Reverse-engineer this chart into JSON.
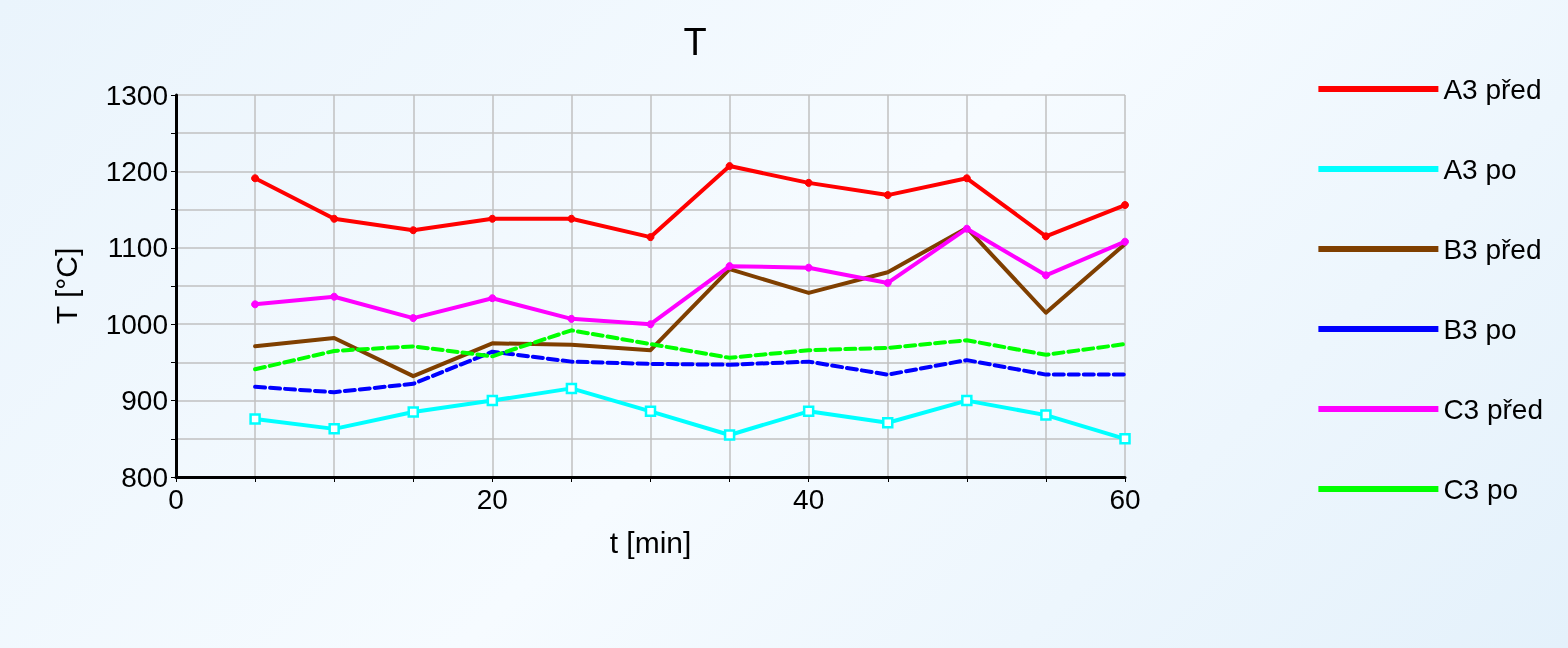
{
  "chart_data": {
    "type": "line",
    "title": "T",
    "xlabel": "t [min]",
    "ylabel": "T [°C]",
    "x": [
      5,
      10,
      15,
      20,
      25,
      30,
      35,
      40,
      45,
      50,
      55,
      60
    ],
    "xlim": [
      0,
      60
    ],
    "xticks": [
      0,
      {
        "value": 5,
        "label": null
      },
      {
        "value": 10,
        "label": null
      },
      {
        "value": 15,
        "label": null
      },
      20,
      {
        "value": 25,
        "label": null
      },
      {
        "value": 30,
        "label": null
      },
      {
        "value": 35,
        "label": null
      },
      40,
      {
        "value": 45,
        "label": null
      },
      {
        "value": 50,
        "label": null
      },
      {
        "value": 55,
        "label": null
      },
      60
    ],
    "ylim": [
      800,
      1300
    ],
    "yticks": [
      800,
      {
        "value": 850,
        "label": null
      },
      900,
      {
        "value": 950,
        "label": null
      },
      1000,
      {
        "value": 1050,
        "label": null
      },
      1100,
      {
        "value": 1150,
        "label": null
      },
      1200,
      {
        "value": 1250,
        "label": null
      },
      1300
    ],
    "grid": true,
    "legend": "right",
    "series": [
      {
        "name": "A3 před",
        "color": "#ff0000",
        "marker": "circle",
        "line_style": "solid",
        "values": [
          1191,
          1138,
          1123,
          1138,
          1138,
          1114,
          1207,
          1185,
          1169,
          1191,
          1115,
          1156
        ]
      },
      {
        "name": "A3 po",
        "color": "#00ffff",
        "marker": "square",
        "line_style": "solid",
        "values": [
          876,
          863,
          885,
          900,
          916,
          886,
          855,
          886,
          871,
          900,
          881,
          850
        ]
      },
      {
        "name": "B3 před",
        "color": "#7f3f00",
        "marker": "none",
        "line_style": "solid",
        "values": [
          971,
          982,
          932,
          975,
          973,
          966,
          1072,
          1041,
          1068,
          1126,
          1015,
          1105
        ]
      },
      {
        "name": "B3 po",
        "color": "#0000ff",
        "marker": "none",
        "line_style": "dashed",
        "values": [
          918,
          911,
          922,
          964,
          951,
          948,
          947,
          951,
          934,
          953,
          934,
          934
        ]
      },
      {
        "name": "C3 před",
        "color": "#ff00ff",
        "marker": "circle",
        "line_style": "solid",
        "values": [
          1026,
          1036,
          1008,
          1034,
          1007,
          1000,
          1076,
          1074,
          1054,
          1125,
          1064,
          1108
        ]
      },
      {
        "name": "C3 po",
        "color": "#00ff00",
        "marker": "none",
        "line_style": "dashed",
        "values": [
          941,
          965,
          971,
          958,
          992,
          974,
          956,
          966,
          969,
          979,
          960,
          974
        ]
      }
    ]
  }
}
